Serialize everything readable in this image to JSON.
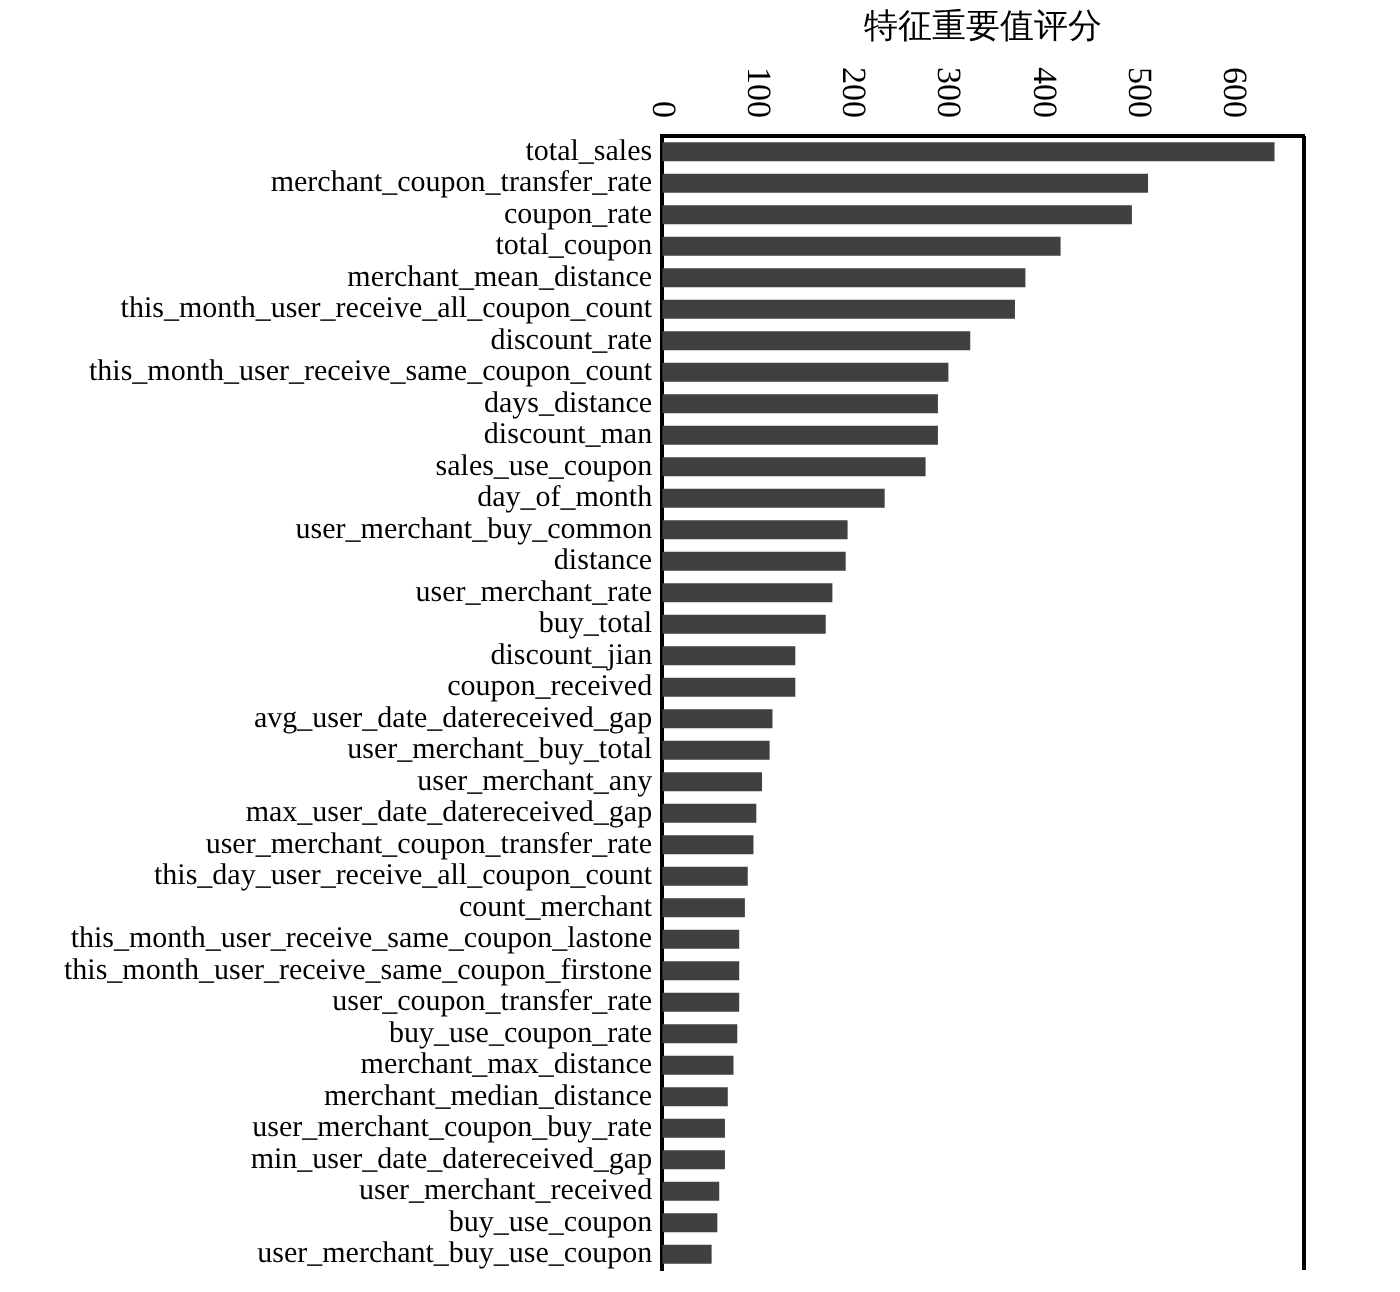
{
  "chart_data": {
    "type": "bar",
    "orientation": "horizontal",
    "xlabel": "特征重要值评分",
    "categories": [
      "total_sales",
      "merchant_coupon_transfer_rate",
      "coupon_rate",
      "total_coupon",
      "merchant_mean_distance",
      "this_month_user_receive_all_coupon_count",
      "discount_rate",
      "this_month_user_receive_same_coupon_count",
      "days_distance",
      "discount_man",
      "sales_use_coupon",
      "day_of_month",
      "user_merchant_buy_common",
      "distance",
      "user_merchant_rate",
      "buy_total",
      "discount_jian",
      "coupon_received",
      "avg_user_date_datereceived_gap",
      "user_merchant_buy_total",
      "user_merchant_any",
      "max_user_date_datereceived_gap",
      "user_merchant_coupon_transfer_rate",
      "this_day_user_receive_all_coupon_count",
      "count_merchant",
      "this_month_user_receive_same_coupon_lastone",
      "this_month_user_receive_same_coupon_firstone",
      "user_coupon_transfer_rate",
      "buy_use_coupon_rate",
      "merchant_max_distance",
      "merchant_median_distance",
      "user_merchant_coupon_buy_rate",
      "min_user_date_datereceived_gap",
      "user_merchant_received",
      "buy_use_coupon",
      "user_merchant_buy_use_coupon"
    ],
    "values": [
      644,
      511,
      494,
      419,
      382,
      371,
      324,
      301,
      290,
      290,
      277,
      234,
      195,
      193,
      179,
      172,
      140,
      140,
      116,
      113,
      105,
      99,
      96,
      90,
      87,
      81,
      81,
      81,
      79,
      75,
      69,
      66,
      66,
      60,
      58,
      52
    ],
    "color": "#404040",
    "xlim": [
      0,
      675
    ],
    "xticks": [
      0,
      100,
      200,
      300,
      400,
      500,
      600
    ],
    "grid": false,
    "legend": false
  }
}
